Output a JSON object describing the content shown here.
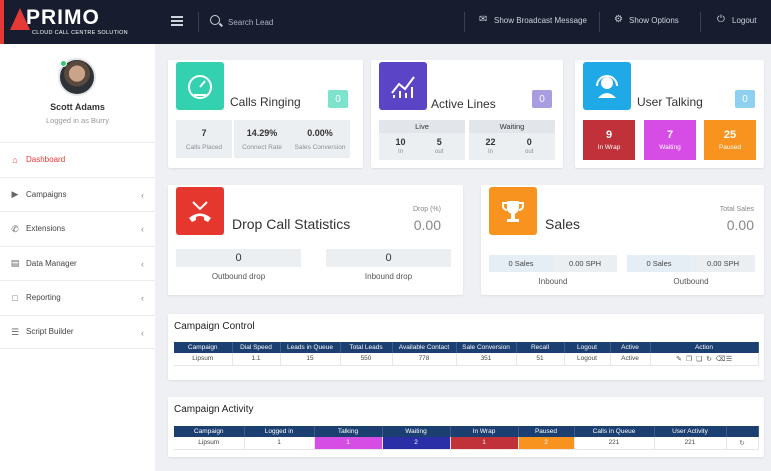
{
  "brand": {
    "name": "PRIMO",
    "tagline": "CLOUD CALL CENTRE SOLUTION"
  },
  "topbar": {
    "search_placeholder": "Search Lead",
    "broadcast_label": "Show Broadcast Message",
    "options_label": "Show Options",
    "logout_label": "Logout"
  },
  "user": {
    "name": "Scott Adams",
    "subtitle": "Logged in as Burry"
  },
  "sidebar": {
    "items": [
      {
        "label": "Dashboard",
        "icon": "home-icon"
      },
      {
        "label": "Campaigns",
        "icon": "megaphone-icon"
      },
      {
        "label": "Extensions",
        "icon": "phone-icon"
      },
      {
        "label": "Data Manager",
        "icon": "database-icon"
      },
      {
        "label": "Reporting",
        "icon": "bar-chart-icon"
      },
      {
        "label": "Script Builder",
        "icon": "document-icon"
      }
    ]
  },
  "calls_ringing": {
    "title": "Calls Ringing",
    "count": "0",
    "calls_placed": {
      "value": "7",
      "label": "Calls Placed"
    },
    "connect_rate": {
      "value": "14.29%",
      "label": "Connect Rate"
    },
    "sales_conversion": {
      "value": "0.00%",
      "label": "Sales Conversion"
    }
  },
  "active_lines": {
    "title": "Active Lines",
    "count": "0",
    "live": {
      "label": "Live",
      "in_value": "10",
      "out_value": "5",
      "in_label": "In",
      "out_label": "out"
    },
    "waiting": {
      "label": "Waiting",
      "in_value": "22",
      "out_value": "0",
      "in_label": "In",
      "out_label": "out"
    }
  },
  "user_talking": {
    "title": "User Talking",
    "count": "0",
    "in_wrap": {
      "value": "9",
      "label": "In Wrap"
    },
    "waiting": {
      "value": "7",
      "label": "Waiting"
    },
    "paused": {
      "value": "25",
      "label": "Paused"
    }
  },
  "drop_calls": {
    "title": "Drop Call Statistics",
    "drop_label": "Drop (%)",
    "drop_value": "0.00",
    "outbound_value": "0",
    "outbound_label": "Outbound drop",
    "inbound_value": "0",
    "inbound_label": "Inbound drop"
  },
  "sales": {
    "title": "Sales",
    "total_label": "Total Sales",
    "total_value": "0.00",
    "inbound": {
      "sales": "0 Sales",
      "sph": "0.00 SPH",
      "label": "Inbound"
    },
    "outbound": {
      "sales": "0 Sales",
      "sph": "0.00 SPH",
      "label": "Outbound"
    }
  },
  "campaign_control": {
    "title": "Campaign Control",
    "headers": [
      "Campaign",
      "Dial Speed",
      "Leads in Queue",
      "Total Leads",
      "Available Contact",
      "Sale Conversion",
      "Recall",
      "Logout",
      "Active",
      "Action"
    ],
    "row": [
      "Lipsum",
      "1.1",
      "15",
      "550",
      "778",
      "351",
      "51",
      "Logout",
      "Active"
    ]
  },
  "campaign_activity": {
    "title": "Campaign Activity",
    "headers": [
      "Campaign",
      "Logged in",
      "Talking",
      "Waiting",
      "In Wrap",
      "Paused",
      "Calls in Queue",
      "User Activity"
    ],
    "row": [
      "Lipsum",
      "1",
      "1",
      "2",
      "1",
      "2",
      "221",
      "221"
    ]
  },
  "colors": {
    "accent_red": "#e53935",
    "calls_tile": "#33d1b0",
    "lines_tile": "#5b45c6",
    "user_tile": "#1fa9e6",
    "drop_tile": "#e6372e",
    "sales_tile": "#f7931e",
    "in_wrap": "#c0313a",
    "waiting": "#d64de6",
    "paused": "#f7931e",
    "table_header": "#1b3f70"
  }
}
